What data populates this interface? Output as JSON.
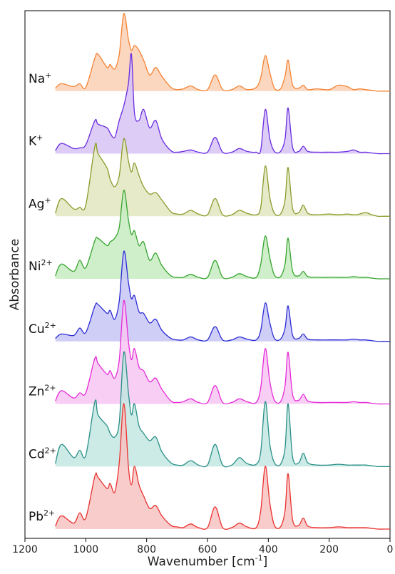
{
  "chart_data": {
    "type": "area",
    "title": "",
    "xlabel": "Wavenumber [cm",
    "xlabel_sup": "-1",
    "xlabel_suffix": "]",
    "ylabel": "Absorbance",
    "xlim": [
      1200,
      0
    ],
    "x_reversed": true,
    "x_ticks": [
      1200,
      1000,
      800,
      600,
      400,
      200,
      0
    ],
    "grid": false,
    "legend": "inline labels at left of each trace",
    "offset_per_series": 1,
    "x": [
      1100,
      1080,
      1040,
      1020,
      1000,
      970,
      960,
      930,
      920,
      905,
      890,
      875,
      860,
      850,
      840,
      825,
      810,
      790,
      770,
      750,
      720,
      700,
      680,
      655,
      630,
      600,
      575,
      550,
      520,
      495,
      470,
      440,
      425,
      410,
      395,
      380,
      360,
      345,
      335,
      320,
      300,
      285,
      270,
      240,
      200,
      170,
      140,
      120,
      100,
      80,
      60,
      40,
      20,
      0
    ],
    "series": [
      {
        "name": "Na",
        "sup": "+",
        "color": "#f58231",
        "fill": "#fbd0b4",
        "values": [
          0.04,
          0.1,
          0.06,
          0.1,
          0.05,
          0.45,
          0.5,
          0.32,
          0.36,
          0.3,
          0.5,
          1.05,
          0.7,
          0.55,
          0.62,
          0.55,
          0.42,
          0.22,
          0.32,
          0.2,
          0.05,
          0.02,
          0.03,
          0.07,
          0.02,
          0.02,
          0.22,
          0.02,
          0.02,
          0.07,
          0.02,
          0.05,
          0.18,
          0.48,
          0.25,
          0.04,
          0.03,
          0.2,
          0.42,
          0.08,
          0.04,
          0.08,
          0.02,
          0.03,
          0.02,
          0.08,
          0.06,
          0.02,
          0.03,
          0.02,
          0.01,
          0.0,
          0.0,
          0.0
        ]
      },
      {
        "name": "K",
        "sup": "+",
        "color": "#6a2ce0",
        "fill": "#d6c3f5",
        "values": [
          0.04,
          0.14,
          0.07,
          0.08,
          0.12,
          0.45,
          0.4,
          0.35,
          0.28,
          0.22,
          0.45,
          0.65,
          0.95,
          1.35,
          0.55,
          0.45,
          0.6,
          0.35,
          0.45,
          0.2,
          0.04,
          0.02,
          0.03,
          0.05,
          0.02,
          0.02,
          0.22,
          0.02,
          0.02,
          0.07,
          0.03,
          0.02,
          0.05,
          0.6,
          0.2,
          0.03,
          0.03,
          0.2,
          0.62,
          0.08,
          0.03,
          0.1,
          0.03,
          0.02,
          0.02,
          0.02,
          0.03,
          0.05,
          0.02,
          0.02,
          0.01,
          0.0,
          0.0,
          0.0
        ]
      },
      {
        "name": "Ag",
        "sup": "+",
        "color": "#8a9a2a",
        "fill": "#e3e6bf",
        "values": [
          0.04,
          0.24,
          0.1,
          0.12,
          0.15,
          0.95,
          0.85,
          0.65,
          0.5,
          0.4,
          0.55,
          1.05,
          0.75,
          0.6,
          0.72,
          0.55,
          0.4,
          0.3,
          0.32,
          0.22,
          0.06,
          0.03,
          0.03,
          0.08,
          0.03,
          0.02,
          0.24,
          0.02,
          0.02,
          0.08,
          0.04,
          0.02,
          0.12,
          0.68,
          0.25,
          0.04,
          0.03,
          0.22,
          0.66,
          0.1,
          0.05,
          0.15,
          0.04,
          0.02,
          0.03,
          0.02,
          0.03,
          0.02,
          0.03,
          0.05,
          0.02,
          0.0,
          0.0,
          0.0
        ]
      },
      {
        "name": "Ni",
        "sup": "2+",
        "color": "#36a42e",
        "fill": "#c5ecc1",
        "values": [
          0.04,
          0.2,
          0.1,
          0.25,
          0.15,
          0.52,
          0.55,
          0.45,
          0.5,
          0.55,
          0.7,
          1.2,
          0.8,
          0.6,
          0.65,
          0.45,
          0.5,
          0.25,
          0.35,
          0.18,
          0.04,
          0.02,
          0.02,
          0.06,
          0.02,
          0.02,
          0.25,
          0.02,
          0.02,
          0.07,
          0.03,
          0.02,
          0.2,
          0.58,
          0.28,
          0.05,
          0.03,
          0.2,
          0.55,
          0.1,
          0.04,
          0.1,
          0.03,
          0.02,
          0.02,
          0.02,
          0.02,
          0.03,
          0.02,
          0.02,
          0.01,
          0.0,
          0.0,
          0.0
        ]
      },
      {
        "name": "Cu",
        "sup": "2+",
        "color": "#2b2bd6",
        "fill": "#c6c6f5",
        "values": [
          0.04,
          0.1,
          0.08,
          0.18,
          0.12,
          0.48,
          0.5,
          0.38,
          0.42,
          0.3,
          0.55,
          1.22,
          0.8,
          0.58,
          0.62,
          0.4,
          0.38,
          0.25,
          0.3,
          0.15,
          0.04,
          0.02,
          0.02,
          0.06,
          0.02,
          0.02,
          0.2,
          0.02,
          0.02,
          0.06,
          0.03,
          0.02,
          0.15,
          0.52,
          0.25,
          0.04,
          0.03,
          0.18,
          0.48,
          0.08,
          0.04,
          0.1,
          0.03,
          0.02,
          0.02,
          0.02,
          0.02,
          0.03,
          0.02,
          0.02,
          0.01,
          0.0,
          0.0,
          0.0
        ]
      },
      {
        "name": "Zn",
        "sup": "2+",
        "color": "#e52bd8",
        "fill": "#f7c6f2",
        "values": [
          0.04,
          0.18,
          0.08,
          0.15,
          0.15,
          0.62,
          0.55,
          0.4,
          0.45,
          0.35,
          0.6,
          1.4,
          0.85,
          0.6,
          0.75,
          0.5,
          0.45,
          0.3,
          0.35,
          0.2,
          0.04,
          0.02,
          0.03,
          0.07,
          0.02,
          0.02,
          0.25,
          0.02,
          0.02,
          0.07,
          0.03,
          0.02,
          0.22,
          0.75,
          0.3,
          0.05,
          0.03,
          0.25,
          0.7,
          0.12,
          0.05,
          0.13,
          0.04,
          0.02,
          0.02,
          0.02,
          0.02,
          0.03,
          0.02,
          0.02,
          0.01,
          0.0,
          0.0,
          0.0
        ]
      },
      {
        "name": "Cd",
        "sup": "2+",
        "color": "#2a8f88",
        "fill": "#c3e6e2",
        "values": [
          0.04,
          0.3,
          0.12,
          0.22,
          0.15,
          0.88,
          0.7,
          0.55,
          0.45,
          0.4,
          0.6,
          1.55,
          1.0,
          0.7,
          0.85,
          0.55,
          0.45,
          0.35,
          0.4,
          0.2,
          0.05,
          0.02,
          0.02,
          0.08,
          0.02,
          0.02,
          0.3,
          0.02,
          0.02,
          0.12,
          0.04,
          0.03,
          0.2,
          0.88,
          0.3,
          0.05,
          0.03,
          0.25,
          0.85,
          0.12,
          0.05,
          0.18,
          0.05,
          0.02,
          0.02,
          0.03,
          0.02,
          0.02,
          0.02,
          0.02,
          0.01,
          0.0,
          0.0,
          0.0
        ]
      },
      {
        "name": "Pb",
        "sup": "2+",
        "color": "#e8322f",
        "fill": "#f7c3c2",
        "values": [
          0.04,
          0.18,
          0.08,
          0.22,
          0.15,
          0.72,
          0.7,
          0.55,
          0.62,
          0.5,
          0.9,
          1.7,
          0.85,
          0.6,
          0.85,
          0.6,
          0.45,
          0.28,
          0.32,
          0.18,
          0.05,
          0.03,
          0.02,
          0.07,
          0.02,
          0.02,
          0.3,
          0.02,
          0.02,
          0.08,
          0.03,
          0.02,
          0.25,
          0.85,
          0.35,
          0.05,
          0.03,
          0.25,
          0.75,
          0.12,
          0.05,
          0.15,
          0.04,
          0.02,
          0.02,
          0.03,
          0.02,
          0.02,
          0.02,
          0.02,
          0.01,
          0.0,
          0.0,
          0.0
        ]
      }
    ]
  }
}
